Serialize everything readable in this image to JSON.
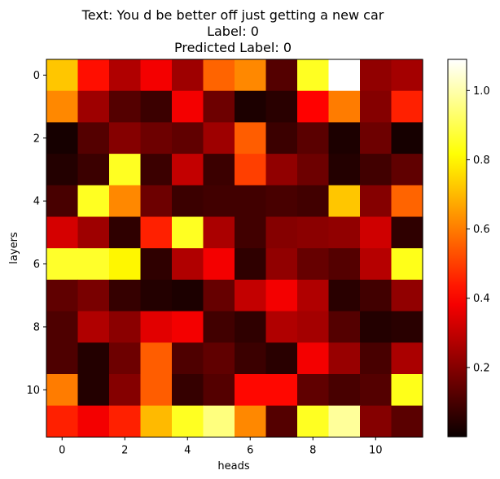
{
  "chart_data": {
    "type": "heatmap",
    "title_lines": [
      "Text: You d be better off just getting a new car",
      "Label: 0",
      "Predicted Label: 0"
    ],
    "xlabel": "heads",
    "ylabel": "layers",
    "x_ticks": [
      0,
      2,
      4,
      6,
      8,
      10
    ],
    "y_ticks": [
      0,
      2,
      4,
      6,
      8,
      10
    ],
    "colormap": "hot",
    "colorbar": {
      "vmin": 0.0,
      "vmax": 1.09,
      "ticks": [
        0.2,
        0.4,
        0.6,
        0.8,
        1.0
      ],
      "tick_labels": [
        "0.2",
        "0.4",
        "0.6",
        "0.8",
        "1.0"
      ]
    },
    "values": [
      [
        0.72,
        0.42,
        0.27,
        0.38,
        0.24,
        0.56,
        0.62,
        0.12,
        0.85,
        1.09,
        0.22,
        0.25
      ],
      [
        0.62,
        0.24,
        0.12,
        0.08,
        0.38,
        0.16,
        0.03,
        0.05,
        0.4,
        0.6,
        0.2,
        0.45
      ],
      [
        0.02,
        0.12,
        0.2,
        0.16,
        0.14,
        0.24,
        0.55,
        0.08,
        0.13,
        0.03,
        0.16,
        0.02
      ],
      [
        0.04,
        0.08,
        0.85,
        0.08,
        0.3,
        0.08,
        0.5,
        0.22,
        0.16,
        0.04,
        0.09,
        0.14
      ],
      [
        0.1,
        0.85,
        0.62,
        0.16,
        0.08,
        0.09,
        0.09,
        0.1,
        0.09,
        0.72,
        0.2,
        0.56
      ],
      [
        0.33,
        0.24,
        0.06,
        0.45,
        0.85,
        0.26,
        0.09,
        0.2,
        0.21,
        0.22,
        0.32,
        0.06
      ],
      [
        0.86,
        0.86,
        0.8,
        0.06,
        0.27,
        0.38,
        0.06,
        0.22,
        0.15,
        0.12,
        0.28,
        0.84
      ],
      [
        0.14,
        0.18,
        0.07,
        0.04,
        0.03,
        0.15,
        0.3,
        0.38,
        0.27,
        0.05,
        0.09,
        0.22
      ],
      [
        0.11,
        0.27,
        0.21,
        0.35,
        0.38,
        0.09,
        0.06,
        0.27,
        0.25,
        0.12,
        0.04,
        0.05
      ],
      [
        0.11,
        0.04,
        0.16,
        0.55,
        0.11,
        0.14,
        0.08,
        0.05,
        0.38,
        0.23,
        0.1,
        0.26
      ],
      [
        0.6,
        0.04,
        0.2,
        0.55,
        0.07,
        0.12,
        0.41,
        0.41,
        0.14,
        0.1,
        0.12,
        0.84
      ],
      [
        0.45,
        0.38,
        0.45,
        0.7,
        0.85,
        0.95,
        0.62,
        0.12,
        0.85,
        0.98,
        0.2,
        0.13
      ]
    ]
  }
}
